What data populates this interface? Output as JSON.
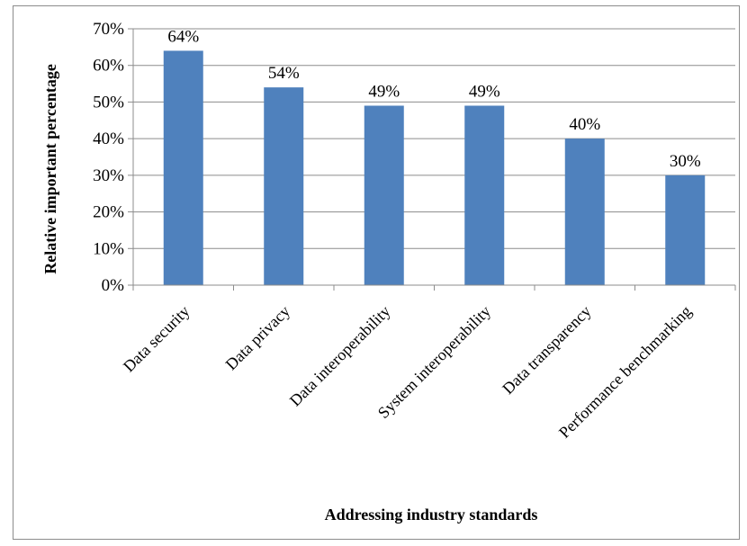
{
  "chart_data": {
    "type": "bar",
    "categories": [
      "Data security",
      "Data privacy",
      "Data interoperability",
      "System interoperability",
      "Data transparency",
      "Performance benchmarking"
    ],
    "values": [
      64,
      54,
      49,
      49,
      40,
      30
    ],
    "data_labels": [
      "64%",
      "54%",
      "49%",
      "49%",
      "40%",
      "30%"
    ],
    "y_ticks": [
      "0%",
      "10%",
      "20%",
      "30%",
      "40%",
      "50%",
      "60%",
      "70%"
    ],
    "ylim": [
      0,
      70
    ],
    "title": "",
    "xlabel": "Addressing industry standards",
    "ylabel": "Relative important percentage",
    "grid": true,
    "legend": "none",
    "bar_color": "#4f81bd",
    "grid_color": "#8c8c8c"
  }
}
